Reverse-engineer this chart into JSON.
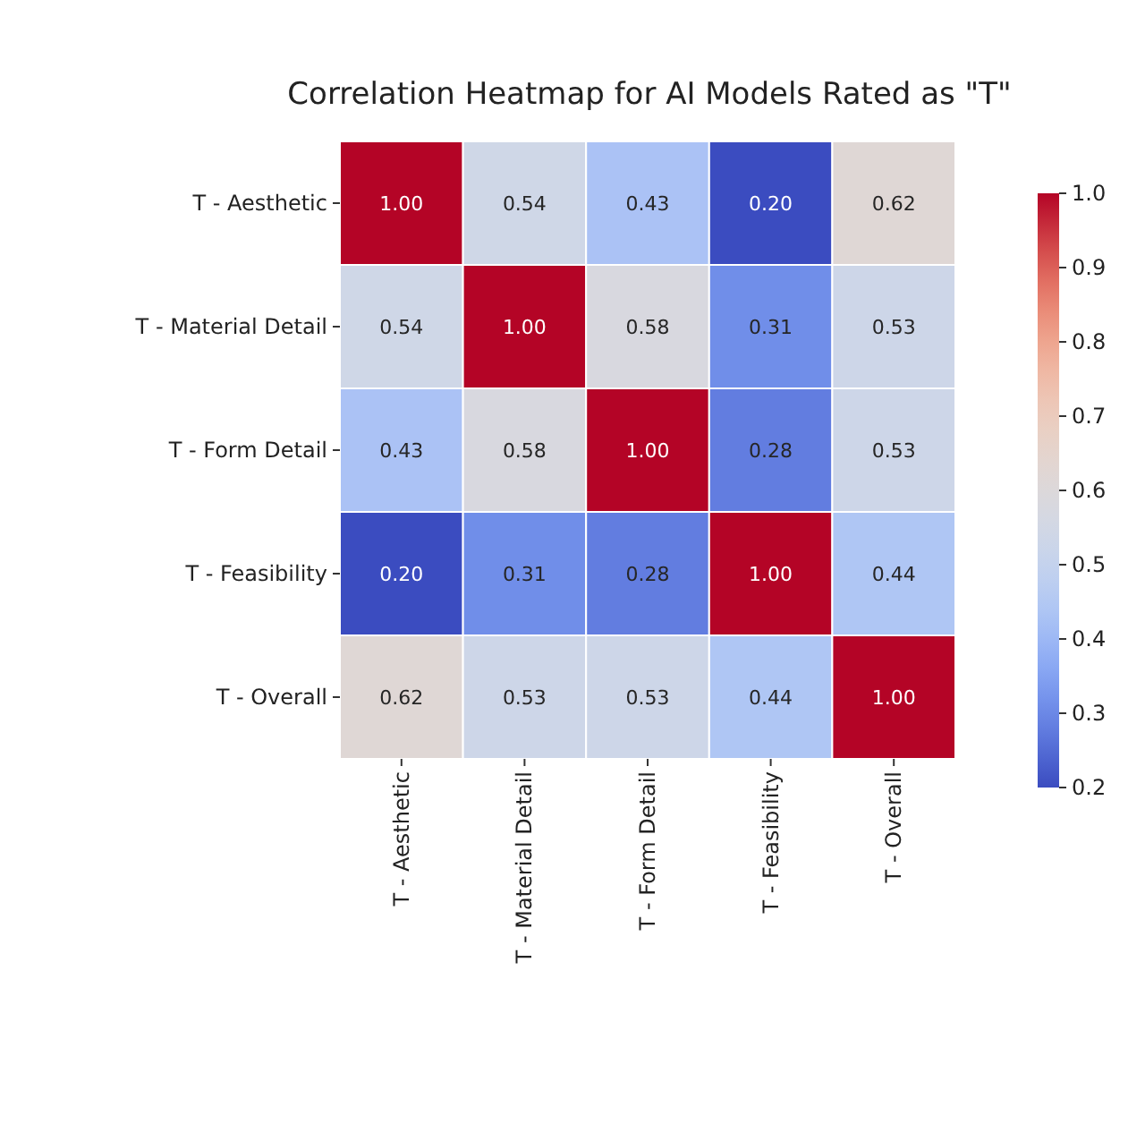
{
  "chart_data": {
    "type": "heatmap",
    "title": "Correlation Heatmap for AI Models Rated as \"T\"",
    "categories": [
      "T - Aesthetic",
      "T - Material Detail",
      "T - Form Detail",
      "T - Feasibility",
      "T - Overall"
    ],
    "y_categories": [
      "T - Aesthetic",
      "T - Material Detail",
      "T - Form Detail",
      "T - Feasibility",
      "T - Overall"
    ],
    "cells": [
      [
        1.0,
        0.54,
        0.43,
        0.2,
        0.62
      ],
      [
        0.54,
        1.0,
        0.58,
        0.31,
        0.53
      ],
      [
        0.43,
        0.58,
        1.0,
        0.28,
        0.53
      ],
      [
        0.2,
        0.31,
        0.28,
        1.0,
        0.44
      ],
      [
        0.62,
        0.53,
        0.53,
        0.44,
        1.0
      ]
    ],
    "cell_labels": [
      [
        "1.00",
        "0.54",
        "0.43",
        "0.20",
        "0.62"
      ],
      [
        "0.54",
        "1.00",
        "0.58",
        "0.31",
        "0.53"
      ],
      [
        "0.43",
        "0.58",
        "1.00",
        "0.28",
        "0.53"
      ],
      [
        "0.20",
        "0.31",
        "0.28",
        "1.00",
        "0.44"
      ],
      [
        "0.62",
        "0.53",
        "0.53",
        "0.44",
        "1.00"
      ]
    ],
    "clim": [
      0.2,
      1.0
    ],
    "cticks": [
      {
        "value": 0.2,
        "label": "0.2"
      },
      {
        "value": 0.3,
        "label": "0.3"
      },
      {
        "value": 0.4,
        "label": "0.4"
      },
      {
        "value": 0.5,
        "label": "0.5"
      },
      {
        "value": 0.6,
        "label": "0.6"
      },
      {
        "value": 0.7,
        "label": "0.7"
      },
      {
        "value": 0.8,
        "label": "0.8"
      },
      {
        "value": 0.9,
        "label": "0.9"
      },
      {
        "value": 1.0,
        "label": "1.0"
      }
    ]
  }
}
